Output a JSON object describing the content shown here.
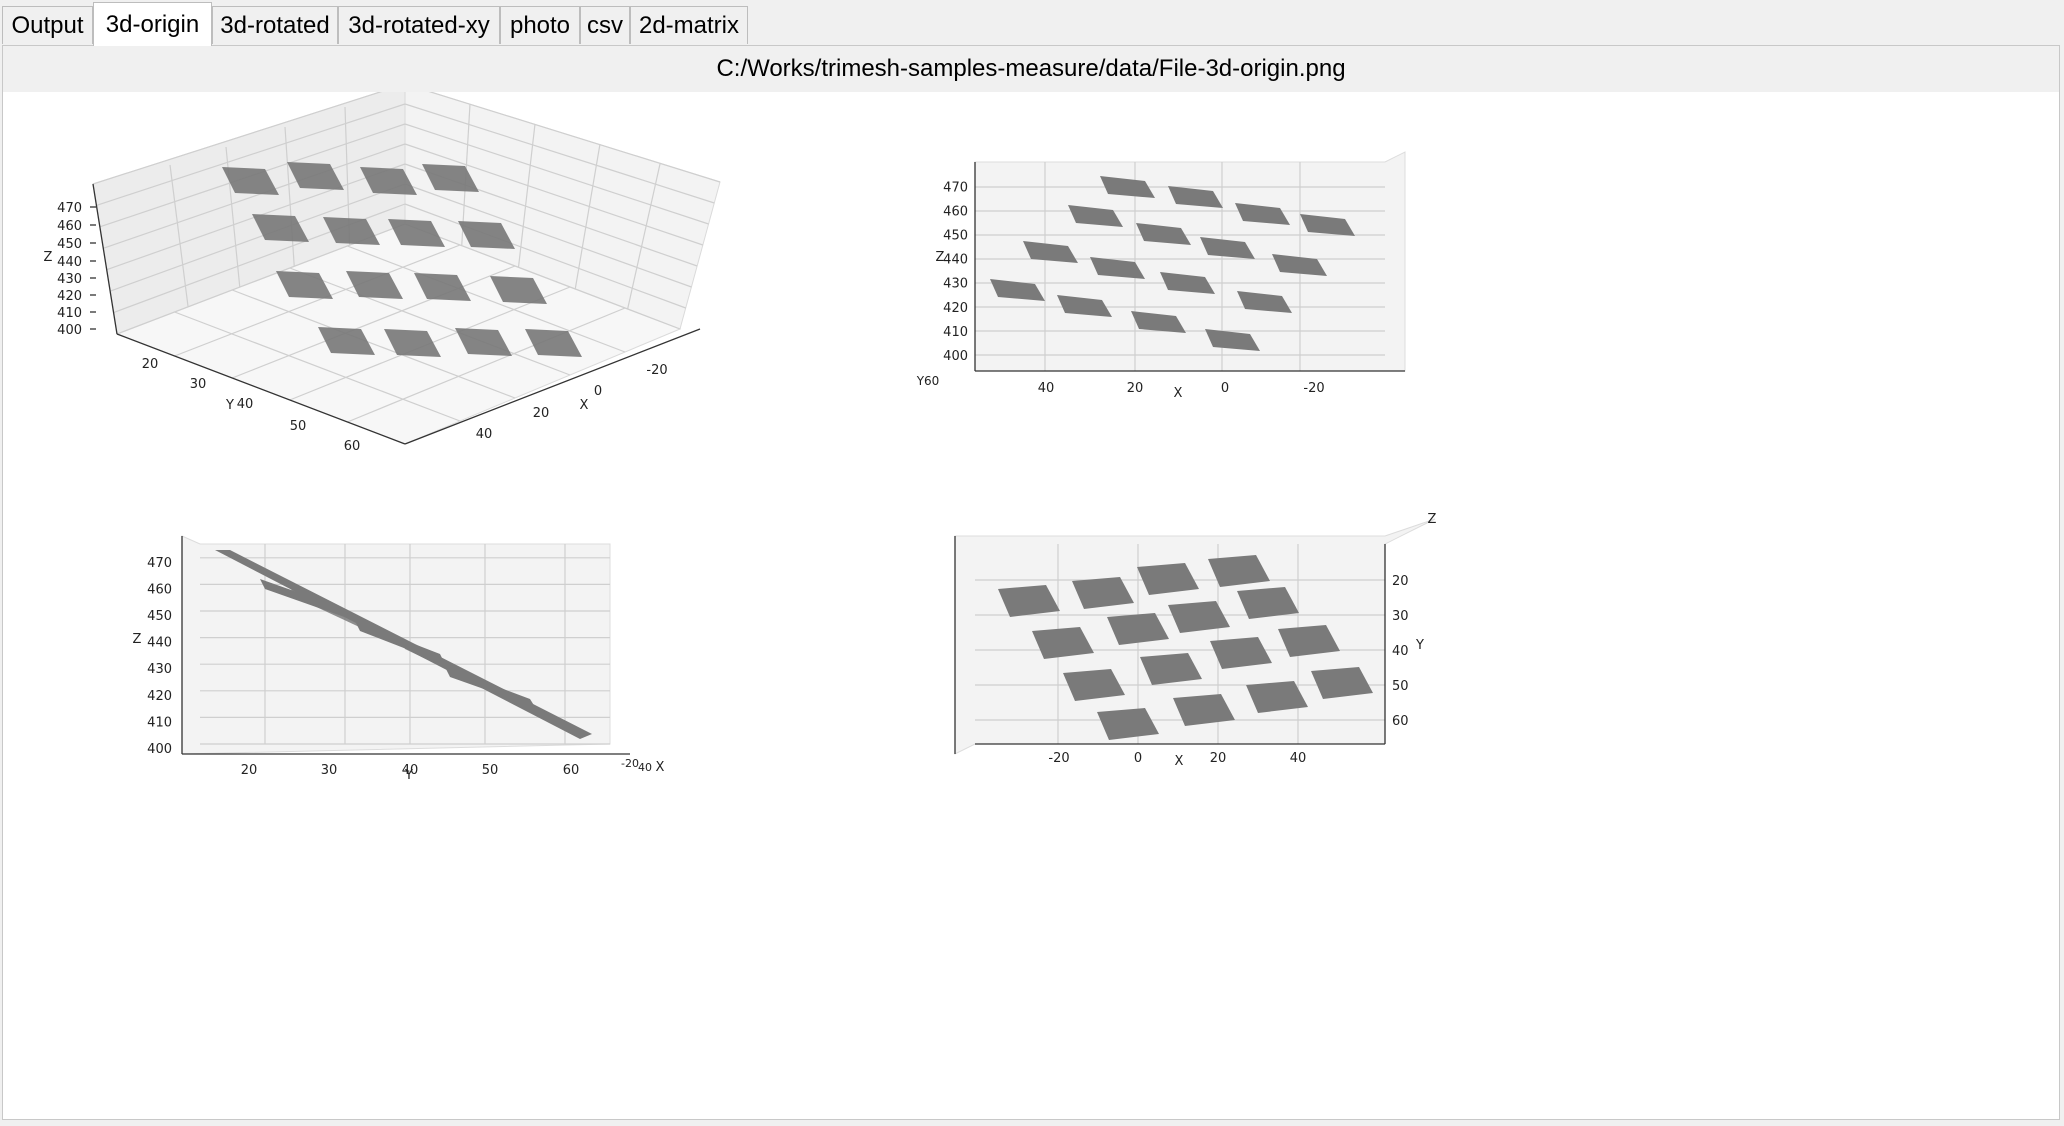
{
  "tabs": [
    {
      "label": "Output",
      "active": false
    },
    {
      "label": "3d-origin",
      "active": true
    },
    {
      "label": "3d-rotated",
      "active": false
    },
    {
      "label": "3d-rotated-xy",
      "active": false
    },
    {
      "label": "photo",
      "active": false
    },
    {
      "label": "csv",
      "active": false
    },
    {
      "label": "2d-matrix",
      "active": false
    }
  ],
  "file_path": "C:/Works/trimesh-samples-measure/data/File-3d-origin.png",
  "point_color": "#7a7a7a",
  "chart_data": [
    {
      "type": "scatter",
      "view": "isometric",
      "x_ticks": [
        "-20",
        "0",
        "20",
        "40"
      ],
      "y_ticks": [
        "20",
        "30",
        "40",
        "50",
        "60"
      ],
      "z_ticks": [
        "400",
        "410",
        "420",
        "430",
        "440",
        "450",
        "460",
        "470"
      ],
      "xlabel": "X",
      "ylabel": "Y",
      "zlabel": "Z",
      "grid": true
    },
    {
      "type": "scatter",
      "view": "front",
      "x_ticks": [
        "40",
        "20",
        "0",
        "-20"
      ],
      "z_ticks": [
        "400",
        "410",
        "420",
        "430",
        "440",
        "450",
        "460",
        "470"
      ],
      "xlabel": "X",
      "ylabel": "Y",
      "zlabel": "Z",
      "y_corner_text": "60",
      "grid": true
    },
    {
      "type": "scatter",
      "view": "side",
      "y_ticks": [
        "20",
        "30",
        "40",
        "50",
        "60"
      ],
      "z_ticks": [
        "400",
        "410",
        "420",
        "430",
        "440",
        "450",
        "460",
        "470"
      ],
      "x_corner_text": "-20",
      "x_corner_text2": "40",
      "xlabel": "X",
      "ylabel": "Y",
      "zlabel": "Z",
      "grid": true
    },
    {
      "type": "scatter",
      "view": "top",
      "x_ticks": [
        "-20",
        "0",
        "20",
        "40"
      ],
      "y_ticks": [
        "20",
        "30",
        "40",
        "50",
        "60"
      ],
      "xlabel": "X",
      "ylabel": "Y",
      "zlabel": "Z",
      "grid": true
    }
  ]
}
